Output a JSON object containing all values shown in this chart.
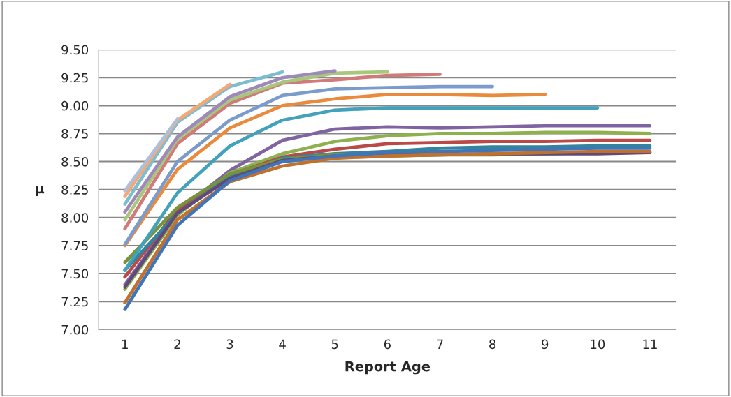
{
  "chart_data": {
    "type": "line",
    "xlabel": "Report Age",
    "ylabel": "μ",
    "categories": [
      "1",
      "2",
      "3",
      "4",
      "5",
      "6",
      "7",
      "8",
      "9",
      "10",
      "11"
    ],
    "ylim": [
      7.0,
      9.5
    ],
    "yticks": [
      {
        "value": 7.0,
        "label": "7.00"
      },
      {
        "value": 7.25,
        "label": "7.25"
      },
      {
        "value": 7.5,
        "label": "7.50"
      },
      {
        "value": 7.75,
        "label": "7.75"
      },
      {
        "value": 8.0,
        "label": "8.00"
      },
      {
        "value": 8.25,
        "label": "8.25"
      },
      {
        "value": 8.5,
        "label": "8.50"
      },
      {
        "value": 8.75,
        "label": "8.75"
      },
      {
        "value": 9.0,
        "label": "9.00"
      },
      {
        "value": 9.25,
        "label": "9.25"
      },
      {
        "value": 9.5,
        "label": "9.50"
      }
    ],
    "grid": "y",
    "marker": "none",
    "line_style": "solid",
    "series": [
      {
        "color": "#8064a2",
        "values": [
          7.4,
          8.05,
          8.42,
          8.69,
          8.79,
          8.81,
          8.8,
          8.81,
          8.82,
          8.82,
          8.82
        ]
      },
      {
        "color": "#8fb04f",
        "values": [
          7.36,
          8.02,
          8.4,
          8.57,
          8.68,
          8.73,
          8.75,
          8.75,
          8.76,
          8.76,
          8.75
        ]
      },
      {
        "color": "#b94a48",
        "values": [
          7.47,
          8.07,
          8.38,
          8.54,
          8.61,
          8.66,
          8.67,
          8.68,
          8.68,
          8.69,
          8.69
        ]
      },
      {
        "color": "#31859c",
        "values": [
          7.53,
          8.04,
          8.36,
          8.53,
          8.57,
          8.59,
          8.62,
          8.63,
          8.63,
          8.64,
          8.64
        ]
      },
      {
        "color": "#77933c",
        "values": [
          7.6,
          8.09,
          8.39,
          8.52,
          8.56,
          8.55,
          8.56,
          8.56,
          8.57,
          8.58,
          8.58
        ]
      },
      {
        "color": "#604a7b",
        "values": [
          7.38,
          8.04,
          8.35,
          8.51,
          8.55,
          8.56,
          8.56,
          8.57,
          8.57,
          8.57,
          8.58
        ]
      },
      {
        "color": "#c0722d",
        "values": [
          7.24,
          7.98,
          8.32,
          8.46,
          8.53,
          8.55,
          8.56,
          8.57,
          8.58,
          8.59,
          8.59
        ]
      },
      {
        "color": "#4374b7",
        "values": [
          7.18,
          7.93,
          8.33,
          8.5,
          8.55,
          8.58,
          8.59,
          8.6,
          8.61,
          8.62,
          8.62
        ]
      },
      {
        "color": "#43a2ba",
        "values": [
          7.53,
          8.22,
          8.64,
          8.87,
          8.96,
          8.98,
          8.98,
          8.98,
          8.98,
          8.98,
          null
        ]
      },
      {
        "color": "#ea8a3c",
        "values": [
          7.75,
          8.43,
          8.8,
          9.0,
          9.06,
          9.1,
          9.1,
          9.09,
          9.1,
          null,
          null
        ]
      },
      {
        "color": "#7b9bcc",
        "values": [
          7.76,
          8.5,
          8.87,
          9.09,
          9.15,
          9.16,
          9.17,
          9.17,
          null,
          null,
          null
        ]
      },
      {
        "color": "#d07b7a",
        "values": [
          7.9,
          8.66,
          9.02,
          9.2,
          9.23,
          9.27,
          9.28,
          null,
          null,
          null,
          null
        ]
      },
      {
        "color": "#a9c77c",
        "values": [
          7.98,
          8.7,
          9.05,
          9.21,
          9.29,
          9.3,
          null,
          null,
          null,
          null,
          null
        ]
      },
      {
        "color": "#9d8ab8",
        "values": [
          8.05,
          8.72,
          9.08,
          9.25,
          9.31,
          null,
          null,
          null,
          null,
          null,
          null
        ]
      },
      {
        "color": "#7dbdd2",
        "values": [
          8.12,
          8.85,
          9.17,
          9.3,
          null,
          null,
          null,
          null,
          null,
          null,
          null
        ]
      },
      {
        "color": "#f6a873",
        "values": [
          8.19,
          8.87,
          9.19,
          null,
          null,
          null,
          null,
          null,
          null,
          null,
          null
        ]
      },
      {
        "color": "#aebfdb",
        "values": [
          8.24,
          8.88,
          null,
          null,
          null,
          null,
          null,
          null,
          null,
          null,
          null
        ]
      }
    ]
  }
}
